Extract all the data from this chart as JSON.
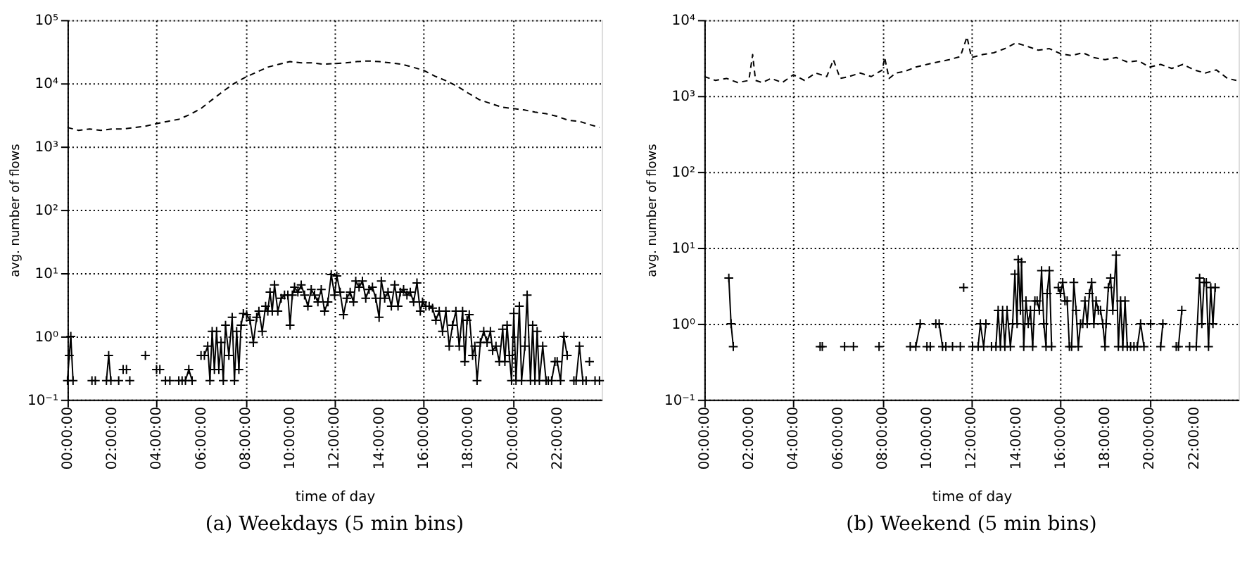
{
  "chart_data": [
    {
      "type": "line",
      "title": "(a) Weekdays (5 min bins)",
      "xlabel": "time of day",
      "ylabel": "avg. number of flows",
      "log": "y",
      "grid": true,
      "xlim": [
        0,
        24
      ],
      "xticks": [
        {
          "value": 0,
          "label": "00:00:00"
        },
        {
          "value": 2,
          "label": "02:00:00"
        },
        {
          "value": 4,
          "label": "04:00:00"
        },
        {
          "value": 6,
          "label": "06:00:00"
        },
        {
          "value": 8,
          "label": "08:00:00"
        },
        {
          "value": 10,
          "label": "10:00:00"
        },
        {
          "value": 12,
          "label": "12:00:00"
        },
        {
          "value": 14,
          "label": "14:00:00"
        },
        {
          "value": 16,
          "label": "16:00:00"
        },
        {
          "value": 18,
          "label": "18:00:00"
        },
        {
          "value": 20,
          "label": "20:00:00"
        },
        {
          "value": 22,
          "label": "22:00:00"
        }
      ],
      "ylim": [
        0.1,
        100000
      ],
      "yticks": [
        {
          "value": 0.1,
          "label": "10⁻¹"
        },
        {
          "value": 1,
          "label": "10⁰"
        },
        {
          "value": 10,
          "label": "10¹"
        },
        {
          "value": 100,
          "label": "10²"
        },
        {
          "value": 1000,
          "label": "10³"
        },
        {
          "value": 10000,
          "label": "10⁴"
        },
        {
          "value": 100000,
          "label": "10⁵"
        }
      ],
      "series": [
        {
          "color": "#000000",
          "line_style": "dashed",
          "marker": "none",
          "x": [
            0,
            0.5,
            1,
            1.5,
            2,
            2.5,
            3,
            3.5,
            4,
            4.5,
            5,
            5.5,
            6,
            6.5,
            7,
            7.5,
            8,
            8.5,
            9,
            9.5,
            10,
            10.5,
            11,
            11.5,
            12,
            12.5,
            13,
            13.5,
            14,
            14.5,
            15,
            15.5,
            16,
            16.5,
            17,
            17.5,
            18,
            18.5,
            19,
            19.5,
            20,
            20.5,
            21,
            21.5,
            22,
            22.5,
            23,
            23.5,
            23.9
          ],
          "values": [
            2000,
            1800,
            1900,
            1800,
            1900,
            1900,
            2000,
            2100,
            2300,
            2500,
            2700,
            3200,
            4000,
            5500,
            7500,
            10000,
            12500,
            15000,
            18000,
            20000,
            22000,
            21000,
            21000,
            20000,
            20500,
            21000,
            22000,
            22500,
            22000,
            21000,
            20000,
            18000,
            16000,
            13000,
            11000,
            9000,
            7000,
            5500,
            4800,
            4200,
            4000,
            3800,
            3500,
            3300,
            3000,
            2600,
            2500,
            2200,
            2000
          ]
        },
        {
          "color": "#000000",
          "line_style": "solid",
          "marker": "cross",
          "x": [
            0,
            0.08,
            0.15,
            0.25,
            0.4,
            1.1,
            1.17,
            1.25,
            1.4,
            1.75,
            1.85,
            1.95,
            2.1,
            2.3,
            2.4,
            2.5,
            2.57,
            2.65,
            2.72,
            2.8,
            3.0,
            3.5,
            3.7,
            4.0,
            4.07,
            4.15,
            4.3,
            4.4,
            4.5,
            4.6,
            4.8,
            5.0,
            5.15,
            5.3,
            5.45,
            5.6,
            5.8,
            6.0,
            6.15,
            6.3,
            6.4,
            6.5,
            6.6,
            6.7,
            6.8,
            6.9,
            7.0,
            7.1,
            7.25,
            7.4,
            7.5,
            7.6,
            7.7,
            7.8,
            7.9,
            8.05,
            8.2,
            8.35,
            8.5,
            8.6,
            8.75,
            8.9,
            9.0,
            9.1,
            9.2,
            9.3,
            9.45,
            9.6,
            9.75,
            9.9,
            10.0,
            10.1,
            10.2,
            10.35,
            10.5,
            10.65,
            10.8,
            10.95,
            11.1,
            11.25,
            11.4,
            11.55,
            11.7,
            11.85,
            12.0,
            12.1,
            12.25,
            12.4,
            12.55,
            12.7,
            12.85,
            12.95,
            13.1,
            13.25,
            13.4,
            13.55,
            13.7,
            13.85,
            14.0,
            14.1,
            14.25,
            14.4,
            14.55,
            14.7,
            14.85,
            14.95,
            15.1,
            15.25,
            15.4,
            15.55,
            15.7,
            15.85,
            15.95,
            16.1,
            16.25,
            16.4,
            16.55,
            16.7,
            16.85,
            17.0,
            17.15,
            17.3,
            17.45,
            17.6,
            17.75,
            17.85,
            17.95,
            18.05,
            18.2,
            18.3,
            18.4,
            18.55,
            18.7,
            18.85,
            19.0,
            19.1,
            19.25,
            19.4,
            19.55,
            19.65,
            19.75,
            19.85,
            19.95,
            20.05,
            20.15,
            20.3,
            20.4,
            20.55,
            20.65,
            20.8,
            20.9,
            21.0,
            21.1,
            21.2,
            21.35,
            21.5,
            21.6,
            21.75,
            21.9,
            22.0,
            22.15,
            22.3,
            22.45,
            22.6,
            22.75,
            22.85,
            23.0,
            23.15,
            23.3,
            23.4,
            23.45,
            23.55,
            23.7,
            23.8,
            23.9
          ],
          "values": [
            0.2,
            0.5,
            1.0,
            0.2,
            null,
            0.2,
            null,
            0.2,
            null,
            0.2,
            0.5,
            0.2,
            null,
            0.2,
            null,
            0.3,
            null,
            0.3,
            null,
            0.2,
            null,
            0.5,
            null,
            0.3,
            null,
            0.3,
            null,
            0.2,
            null,
            0.2,
            null,
            0.2,
            0.2,
            0.2,
            0.3,
            0.2,
            null,
            0.5,
            0.5,
            0.7,
            0.2,
            1.2,
            0.3,
            1.2,
            0.3,
            0.8,
            0.2,
            1.5,
            0.5,
            2,
            0.2,
            1.2,
            0.3,
            1.5,
            2.3,
            2.2,
            1.8,
            0.8,
            2.0,
            2.5,
            1.2,
            3,
            2.5,
            5.0,
            2.5,
            6.5,
            2.5,
            4.0,
            4.5,
            4.5,
            1.5,
            4.5,
            6,
            5,
            6.5,
            4.5,
            3,
            5.5,
            4.5,
            3.5,
            5.5,
            2.5,
            3.5,
            9.5,
            4.5,
            9,
            5,
            2.2,
            4,
            5,
            3.5,
            7.5,
            6,
            7.5,
            4,
            5.5,
            6,
            4,
            2,
            7.5,
            4,
            5,
            3,
            6.5,
            3,
            5,
            5.5,
            4.5,
            5,
            3.5,
            7,
            2.5,
            3.5,
            3,
            3,
            2.8,
            1.8,
            2.5,
            1.2,
            2.5,
            0.7,
            1.5,
            2.5,
            0.7,
            2.5,
            0.4,
            1.8,
            2.2,
            0.5,
            0.7,
            0.2,
            0.8,
            1.2,
            0.8,
            1.2,
            0.6,
            0.7,
            0.4,
            1.3,
            0.4,
            1.5,
            0.5,
            0.2,
            2.3,
            0.2,
            3,
            0.2,
            0.7,
            4.5,
            0.2,
            1.5,
            0.2,
            1.2,
            0.2,
            0.7,
            0.2,
            0.2,
            0.2,
            0.4,
            0.4,
            0.2,
            1.0,
            0.5,
            null,
            0.2,
            0.2,
            0.7,
            0.2,
            0.2,
            null,
            0.4,
            null,
            0.2,
            null,
            0.2
          ]
        }
      ]
    },
    {
      "type": "line",
      "title": "(b) Weekend (5 min bins)",
      "xlabel": "time of day",
      "ylabel": "avg. number of flows",
      "log": "y",
      "grid": true,
      "xlim": [
        0,
        24
      ],
      "xticks": [
        {
          "value": 0,
          "label": "00:00:00"
        },
        {
          "value": 2,
          "label": "02:00:00"
        },
        {
          "value": 4,
          "label": "04:00:00"
        },
        {
          "value": 6,
          "label": "06:00:00"
        },
        {
          "value": 8,
          "label": "08:00:00"
        },
        {
          "value": 10,
          "label": "10:00:00"
        },
        {
          "value": 12,
          "label": "12:00:00"
        },
        {
          "value": 14,
          "label": "14:00:00"
        },
        {
          "value": 16,
          "label": "16:00:00"
        },
        {
          "value": 18,
          "label": "18:00:00"
        },
        {
          "value": 20,
          "label": "20:00:00"
        },
        {
          "value": 22,
          "label": "22:00:00"
        }
      ],
      "ylim": [
        0.1,
        10000
      ],
      "yticks": [
        {
          "value": 0.1,
          "label": "10⁻¹"
        },
        {
          "value": 1,
          "label": "10⁰"
        },
        {
          "value": 10,
          "label": "10¹"
        },
        {
          "value": 100,
          "label": "10²"
        },
        {
          "value": 1000,
          "label": "10³"
        },
        {
          "value": 10000,
          "label": "10⁴"
        }
      ],
      "series": [
        {
          "color": "#000000",
          "line_style": "dashed",
          "marker": "none",
          "x": [
            0,
            0.5,
            1,
            1.5,
            2,
            2.17,
            2.3,
            2.6,
            3,
            3.5,
            4,
            4.5,
            5,
            5.5,
            5.8,
            6.1,
            6.5,
            7,
            7.5,
            8,
            8.1,
            8.3,
            8.6,
            9,
            9.5,
            10,
            10.5,
            11,
            11.5,
            11.8,
            12,
            12.5,
            13,
            13.5,
            14,
            14.5,
            15,
            15.5,
            16,
            16.5,
            17,
            17.5,
            18,
            18.5,
            19,
            19.5,
            20,
            20.5,
            21,
            21.5,
            22,
            22.5,
            23,
            23.5,
            23.9
          ],
          "values": [
            1800,
            1600,
            1700,
            1500,
            1600,
            3500,
            1600,
            1500,
            1700,
            1500,
            1900,
            1600,
            2000,
            1800,
            3000,
            1700,
            1800,
            2000,
            1800,
            2200,
            3200,
            1700,
            2000,
            2100,
            2400,
            2600,
            2800,
            3000,
            3300,
            6000,
            3200,
            3500,
            3700,
            4200,
            5000,
            4500,
            4000,
            4200,
            3600,
            3400,
            3700,
            3200,
            3000,
            3200,
            2800,
            2900,
            2400,
            2600,
            2300,
            2600,
            2200,
            2000,
            2200,
            1700,
            1600
          ]
        },
        {
          "color": "#000000",
          "line_style": "solid",
          "marker": "cross",
          "x": [
            1.1,
            1.2,
            1.3,
            1.4,
            5.2,
            5.25,
            5.3,
            5.4,
            6.3,
            6.5,
            6.7,
            6.8,
            7.85,
            8.0,
            9.25,
            9.5,
            9.7,
            9.85,
            10.0,
            10.07,
            10.15,
            10.25,
            10.4,
            10.55,
            10.7,
            10.85,
            11.0,
            11.15,
            11.3,
            11.5,
            11.57,
            11.65,
            11.8,
            12.05,
            12.2,
            12.3,
            12.4,
            12.55,
            12.65,
            12.8,
            12.9,
            13.1,
            13.2,
            13.3,
            13.4,
            13.5,
            13.6,
            13.75,
            13.85,
            13.95,
            14.05,
            14.1,
            14.2,
            14.25,
            14.35,
            14.45,
            14.55,
            14.65,
            14.75,
            14.85,
            14.95,
            15.05,
            15.15,
            15.25,
            15.35,
            15.4,
            15.5,
            15.6,
            15.75,
            15.9,
            16.0,
            16.1,
            16.2,
            16.3,
            16.4,
            16.5,
            16.6,
            16.7,
            16.8,
            16.9,
            17.0,
            17.1,
            17.2,
            17.3,
            17.4,
            17.5,
            17.6,
            17.7,
            17.8,
            17.9,
            18.0,
            18.05,
            18.15,
            18.25,
            18.35,
            18.5,
            18.6,
            18.7,
            18.8,
            18.9,
            19.0,
            19.15,
            19.3,
            19.45,
            19.6,
            19.75,
            19.9,
            20.05,
            20.2,
            20.5,
            20.6,
            20.8,
            21.2,
            21.3,
            21.45,
            21.6,
            21.8,
            21.95,
            22.1,
            22.25,
            22.35,
            22.45,
            22.55,
            22.65,
            22.75,
            22.85,
            22.95
          ],
          "values": [
            4,
            1,
            0.5,
            null,
            0.5,
            null,
            0.5,
            null,
            0.5,
            null,
            0.5,
            null,
            0.5,
            null,
            0.5,
            0.5,
            1,
            null,
            0.5,
            null,
            0.5,
            null,
            1,
            1,
            0.5,
            0.5,
            null,
            0.5,
            null,
            0.5,
            null,
            3,
            null,
            0.5,
            null,
            0.5,
            1,
            0.5,
            1,
            null,
            0.5,
            0.5,
            1.5,
            0.5,
            1.5,
            0.5,
            1.5,
            0.5,
            1,
            4.5,
            1,
            7,
            1.5,
            6.5,
            0.5,
            2,
            1,
            1.5,
            0.5,
            2,
            2,
            1.5,
            5,
            1,
            0.5,
            2.5,
            5,
            0.5,
            null,
            3,
            2.5,
            3.5,
            2,
            2,
            0.5,
            0.5,
            3.5,
            1.5,
            0.5,
            1,
            1,
            2,
            1,
            2.5,
            3.5,
            1,
            2,
            1.5,
            1.5,
            1,
            0.5,
            1,
            3,
            4,
            1.5,
            8,
            0.5,
            2,
            0.5,
            2,
            0.5,
            0.5,
            0.5,
            0.5,
            1,
            0.5,
            null,
            1,
            null,
            0.5,
            1,
            null,
            0.5,
            0.5,
            1.5,
            null,
            0.5,
            null,
            0.5,
            4,
            1,
            3.5,
            3.5,
            0.5,
            3,
            1,
            3
          ]
        }
      ]
    }
  ]
}
